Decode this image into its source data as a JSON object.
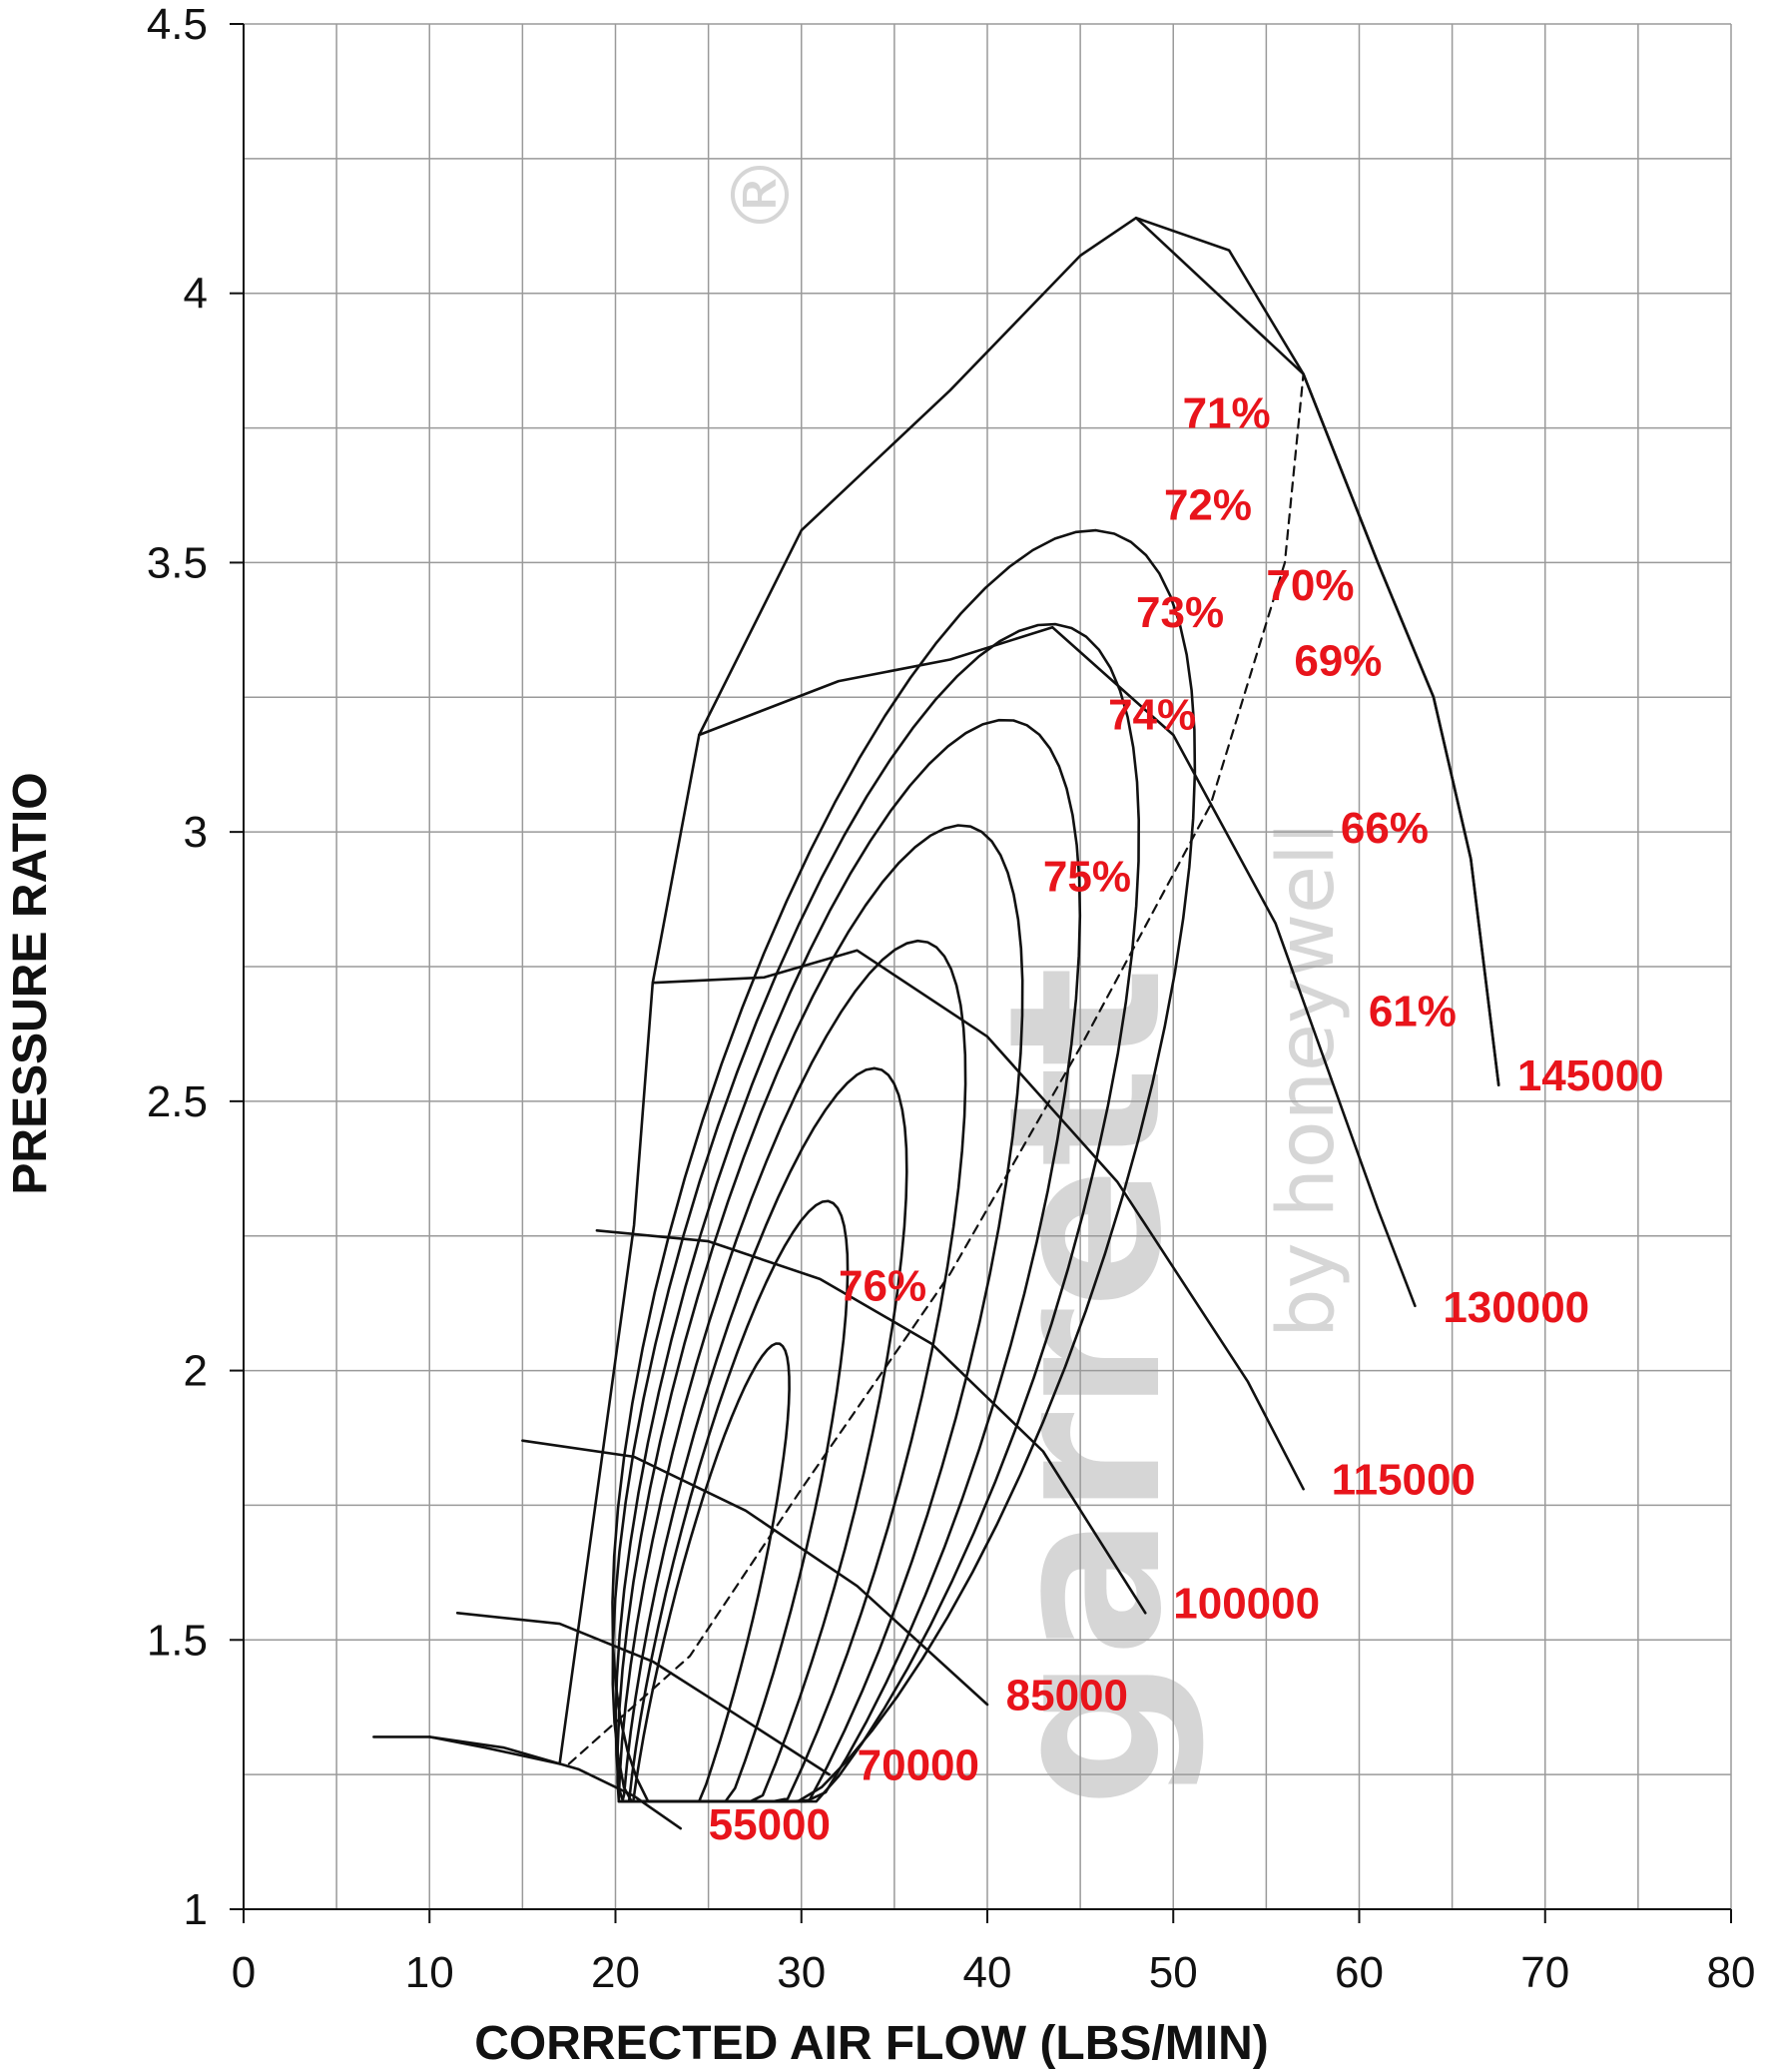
{
  "chart_data": {
    "type": "line",
    "title": "",
    "xlabel": "CORRECTED AIR FLOW (LBS/MIN)",
    "ylabel": "PRESSURE RATIO",
    "xlim": [
      0,
      80
    ],
    "ylim": [
      1,
      4.5
    ],
    "x_ticks": [
      "0",
      "10",
      "20",
      "30",
      "40",
      "50",
      "60",
      "70",
      "80"
    ],
    "y_ticks": [
      "1",
      "1.5",
      "2",
      "2.5",
      "3",
      "3.5",
      "4",
      "4.5"
    ],
    "grid": true,
    "watermark": {
      "text": "garrett",
      "byline": "by honeywell",
      "registered": "®"
    },
    "speed_lines": [
      {
        "name": "55000",
        "x": [
          10,
          14,
          18,
          21,
          23.5
        ],
        "y": [
          1.32,
          1.3,
          1.26,
          1.21,
          1.15
        ]
      },
      {
        "name": "70000",
        "x": [
          11.5,
          17,
          22,
          27,
          31.5
        ],
        "y": [
          1.55,
          1.53,
          1.46,
          1.35,
          1.25
        ]
      },
      {
        "name": "85000",
        "x": [
          15,
          21,
          27,
          33,
          40
        ],
        "y": [
          1.87,
          1.84,
          1.74,
          1.6,
          1.38
        ]
      },
      {
        "name": "100000",
        "x": [
          19,
          25,
          31,
          37,
          43,
          48.5
        ],
        "y": [
          2.26,
          2.24,
          2.17,
          2.05,
          1.85,
          1.55
        ]
      },
      {
        "name": "115000",
        "x": [
          22,
          28,
          33,
          40,
          47,
          54,
          57
        ],
        "y": [
          2.72,
          2.73,
          2.78,
          2.62,
          2.35,
          1.98,
          1.78
        ]
      },
      {
        "name": "130000",
        "x": [
          24.5,
          32,
          38,
          43.5,
          50,
          55.5,
          61,
          63
        ],
        "y": [
          3.18,
          3.28,
          3.32,
          3.38,
          3.18,
          2.83,
          2.3,
          2.12
        ]
      },
      {
        "name": "145000",
        "x": [
          48,
          53,
          57,
          61,
          64,
          66,
          67.5
        ],
        "y": [
          4.14,
          4.08,
          3.85,
          3.5,
          3.25,
          2.95,
          2.53
        ]
      }
    ],
    "efficiency_islands": [
      "76%",
      "75%",
      "74%",
      "73%",
      "72%",
      "71%",
      "70%",
      "69%",
      "66%",
      "61%"
    ],
    "surge_line": {
      "x": [
        7,
        10,
        13,
        17,
        21,
        22,
        24.5,
        30,
        38,
        45,
        48,
        57
      ],
      "y": [
        1.32,
        1.32,
        1.3,
        1.27,
        2.27,
        2.72,
        3.18,
        3.56,
        3.82,
        4.07,
        4.14,
        3.85
      ]
    },
    "choke_line": {
      "x": [
        57,
        61,
        64,
        66,
        67.5
      ],
      "y": [
        3.85,
        3.5,
        3.25,
        2.95,
        2.53
      ]
    }
  }
}
